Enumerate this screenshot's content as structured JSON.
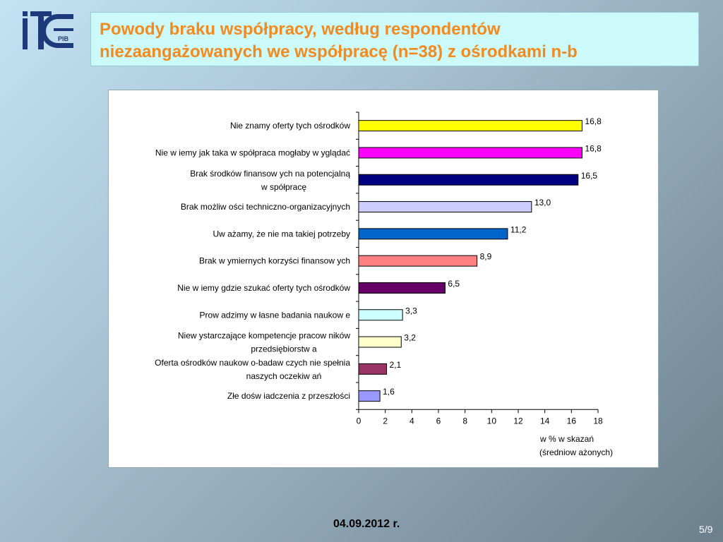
{
  "header": {
    "title_line1": "Powody braku współpracy, według respondentów",
    "title_line2": "niezaangażowanych we współpracę (n=38) z ośrodkami n-b",
    "logo_text": "PIB",
    "logo_icon": "itee-pib-logo-icon"
  },
  "colors": {
    "title": "#f28a1f",
    "title_box_bg": "#ccfafa"
  },
  "chart_data": {
    "type": "bar",
    "orientation": "horizontal",
    "categories": [
      [
        "Nie znamy oferty tych ośrodków"
      ],
      [
        "Nie w iemy jak taka w spółpraca mogłaby w yglądać"
      ],
      [
        "Brak środków  finansow ych na potencjalną",
        "w spółpracę"
      ],
      [
        "Brak możliw ości techniczno-organizacyjnych"
      ],
      [
        "Uw ażamy, że nie ma takiej potrzeby"
      ],
      [
        "Brak w ymiernych korzyści finansow ych"
      ],
      [
        "Nie w iemy gdzie szukać oferty tych ośrodków"
      ],
      [
        "Prow adzimy w łasne badania naukow e"
      ],
      [
        "Niew ystarczające kompetencje pracow ników",
        "przedsiębiorstw a"
      ],
      [
        "Oferta ośrodków  naukow o-badaw czych nie spełnia",
        "naszych oczekiw ań"
      ],
      [
        "Złe dośw iadczenia z przeszłości"
      ]
    ],
    "values": [
      16.8,
      16.8,
      16.5,
      13.0,
      11.2,
      8.9,
      6.5,
      3.3,
      3.2,
      2.1,
      1.6
    ],
    "value_labels": [
      "16,8",
      "16,8",
      "16,5",
      "13,0",
      "11,2",
      "8,9",
      "6,5",
      "3,3",
      "3,2",
      "2,1",
      "1,6"
    ],
    "colors": [
      "#ffff00",
      "#ff00ff",
      "#000080",
      "#ccccff",
      "#0066cc",
      "#ff8080",
      "#660066",
      "#ccffff",
      "#ffffcc",
      "#993366",
      "#9999ff"
    ],
    "xlim": [
      0,
      18
    ],
    "xticks": [
      0,
      2,
      4,
      6,
      8,
      10,
      12,
      14,
      16,
      18
    ],
    "xlabel_line1": "w  % w skazań",
    "xlabel_line2": "(średniow ażonych)",
    "grid": false,
    "legend": "none"
  },
  "footer": {
    "date": "04.09.2012 r.",
    "page": "5/9"
  }
}
